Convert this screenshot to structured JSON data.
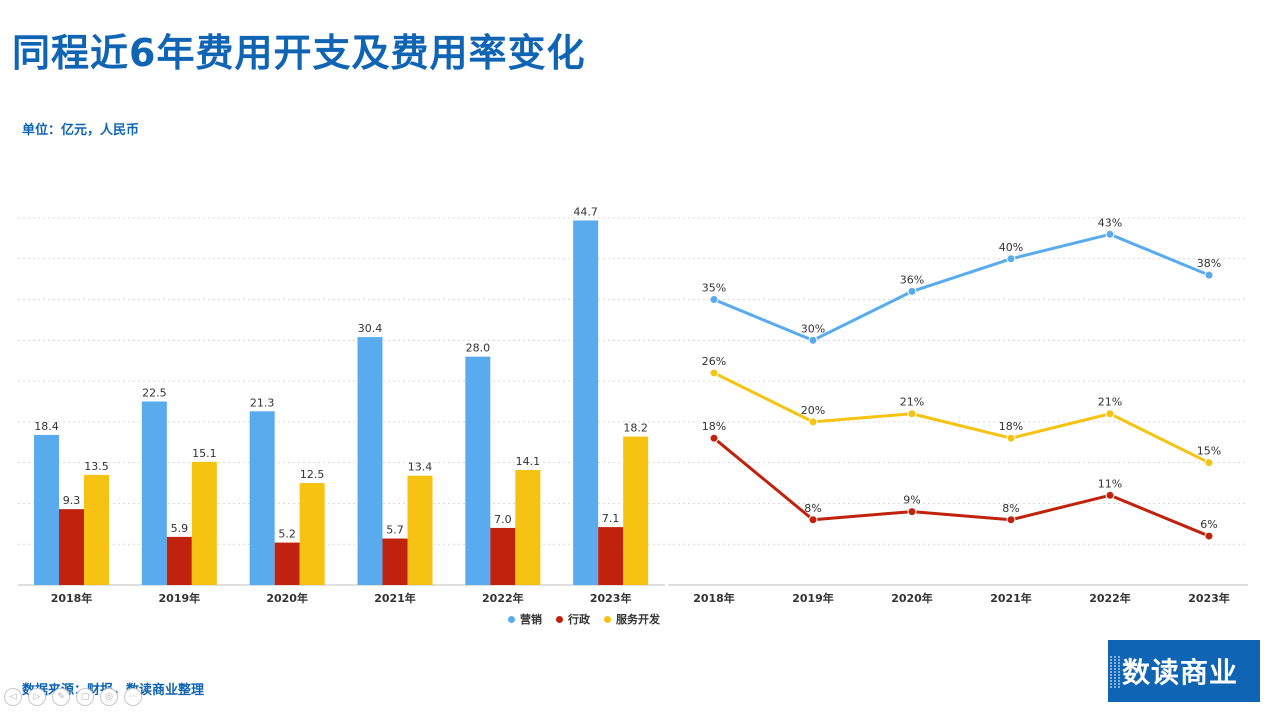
{
  "title": "同程近6年费用开支及费用率变化",
  "unit_label": "单位：亿元，人民币",
  "source_label": "数据来源：财报，数读商业整理",
  "logo": {
    "text": "数读商业"
  },
  "colors": {
    "marketing": "#5aabee",
    "admin": "#c0220e",
    "service": "#f6c313",
    "title": "#1064b4"
  },
  "legend": [
    {
      "name": "营销",
      "color": "#5aabee"
    },
    {
      "name": "行政",
      "color": "#c0220e"
    },
    {
      "name": "服务开发",
      "color": "#f6c313"
    }
  ],
  "toolbar_icons": [
    "prev-icon",
    "play-icon",
    "pen-icon",
    "copy-icon",
    "zoom-icon",
    "more-icon"
  ],
  "chart_data": [
    {
      "type": "bar",
      "categories": [
        "2018年",
        "2019年",
        "2020年",
        "2021年",
        "2022年",
        "2023年"
      ],
      "series": [
        {
          "name": "营销",
          "values": [
            18.4,
            22.5,
            21.3,
            30.4,
            28.0,
            44.7
          ],
          "labels": [
            "18.4",
            "22.5",
            "21.3",
            "30.4",
            "28.0",
            "44.7"
          ]
        },
        {
          "name": "行政",
          "values": [
            9.3,
            5.9,
            5.2,
            5.7,
            7.0,
            7.1
          ],
          "labels": [
            "9.3",
            "5.9",
            "5.2",
            "5.7",
            "7.0",
            "7.1"
          ]
        },
        {
          "name": "服务开发",
          "values": [
            13.5,
            15.1,
            12.5,
            13.4,
            14.1,
            18.2
          ],
          "labels": [
            "13.5",
            "15.1",
            "12.5",
            "13.4",
            "14.1",
            "18.2"
          ]
        }
      ],
      "ylim": [
        0,
        45
      ],
      "grid": true,
      "legend_position": "bottom-right"
    },
    {
      "type": "line",
      "categories": [
        "2018年",
        "2019年",
        "2020年",
        "2021年",
        "2022年",
        "2023年"
      ],
      "series": [
        {
          "name": "营销",
          "values": [
            35,
            30,
            36,
            40,
            43,
            38
          ],
          "labels": [
            "35%",
            "30%",
            "36%",
            "40%",
            "43%",
            "38%"
          ]
        },
        {
          "name": "服务开发",
          "values": [
            26,
            20,
            21,
            18,
            21,
            15
          ],
          "labels": [
            "26%",
            "20%",
            "21%",
            "18%",
            "21%",
            "15%"
          ]
        },
        {
          "name": "行政",
          "values": [
            18,
            8,
            9,
            8,
            11,
            6
          ],
          "labels": [
            "18%",
            "8%",
            "9%",
            "8%",
            "11%",
            "6%"
          ]
        }
      ],
      "ylim": [
        0,
        45
      ],
      "grid": true
    }
  ]
}
